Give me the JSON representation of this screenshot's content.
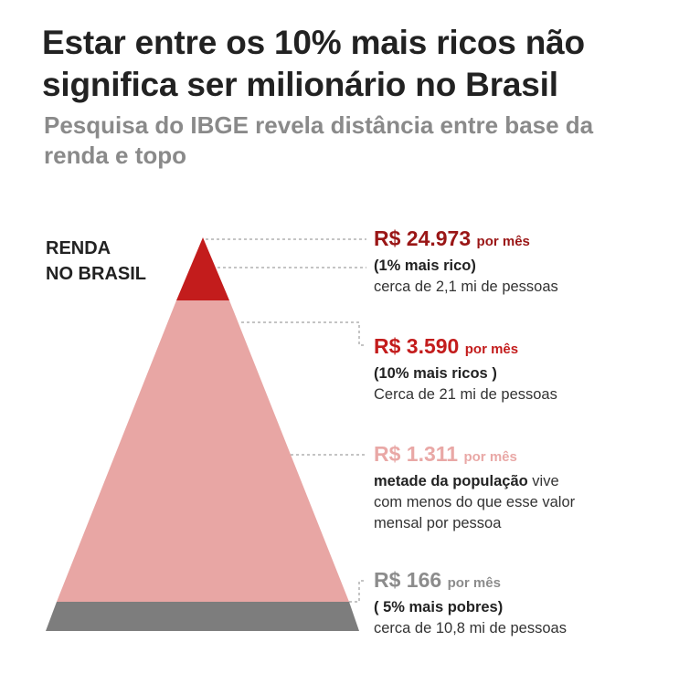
{
  "title": "Estar entre os 10% mais ricos não significa ser milionário no Brasil",
  "subtitle": "Pesquisa do IBGE revela distância entre base da renda e topo",
  "pyramid_label": [
    "RENDA",
    "NO BRASIL"
  ],
  "colors": {
    "top_dark_red": "#c31c1c",
    "body_pink": "#e8a6a4",
    "base_gray": "#7d7d7d",
    "amount_red": "#c31c1c",
    "amount_dark_red": "#9a1616",
    "amount_pink": "#e9a8a6",
    "amount_gray": "#8c8c8c"
  },
  "levels": [
    {
      "amount": "R$ 24.973",
      "unit": "por mês",
      "line1": "(1% mais rico)",
      "line2": "cerca de 2,1 mi de pessoas"
    },
    {
      "amount": "R$ 3.590",
      "unit": "por mês",
      "line1": "(10% mais ricos )",
      "line2": "Cerca de 21 mi de pessoas"
    },
    {
      "amount": "R$ 1.311",
      "unit": "por mês",
      "line1_bold": "metade da população",
      "line1_rest": " vive",
      "line2": "com menos do que esse valor",
      "line3": "mensal por pessoa"
    },
    {
      "amount": "R$ 166",
      "unit": "por mês",
      "line1": "( 5% mais pobres)",
      "line2": "cerca de 10,8 mi de pessoas"
    }
  ]
}
